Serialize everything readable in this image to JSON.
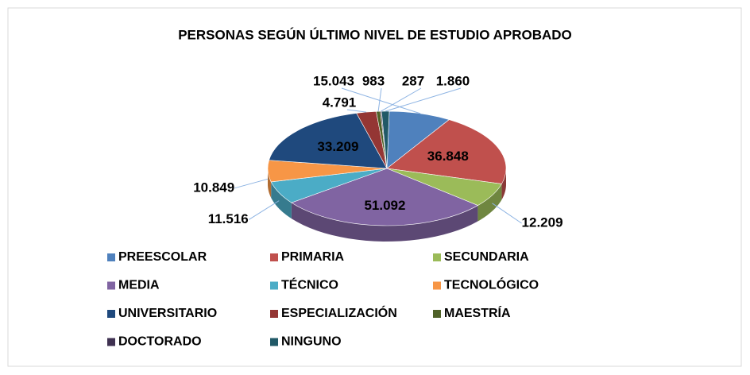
{
  "chart_data": {
    "type": "pie",
    "title": "PERSONAS SEGÚN ÚLTIMO NIVEL DE ESTUDIO APROBADO",
    "categories": [
      "PREESCOLAR",
      "PRIMARIA",
      "SECUNDARIA",
      "MEDIA",
      "TÉCNICO",
      "TECNOLÓGICO",
      "UNIVERSITARIO",
      "ESPECIALIZACIÓN",
      "MAESTRÍA",
      "DOCTORADO",
      "NINGUNO"
    ],
    "values": [
      15043,
      36848,
      12209,
      51092,
      11516,
      10849,
      33209,
      4791,
      983,
      287,
      1860
    ],
    "value_labels": [
      "15.043",
      "36.848",
      "12.209",
      "51.092",
      "11.516",
      "10.849",
      "33.209",
      "4.791",
      "983",
      "287",
      "1.860"
    ],
    "colors": [
      "#4f81bd",
      "#c0504d",
      "#9bbb59",
      "#8064a2",
      "#4bacc6",
      "#f79646",
      "#1f497d",
      "#943634",
      "#4f6228",
      "#3f3151",
      "#215967"
    ],
    "legend": "bottom"
  }
}
